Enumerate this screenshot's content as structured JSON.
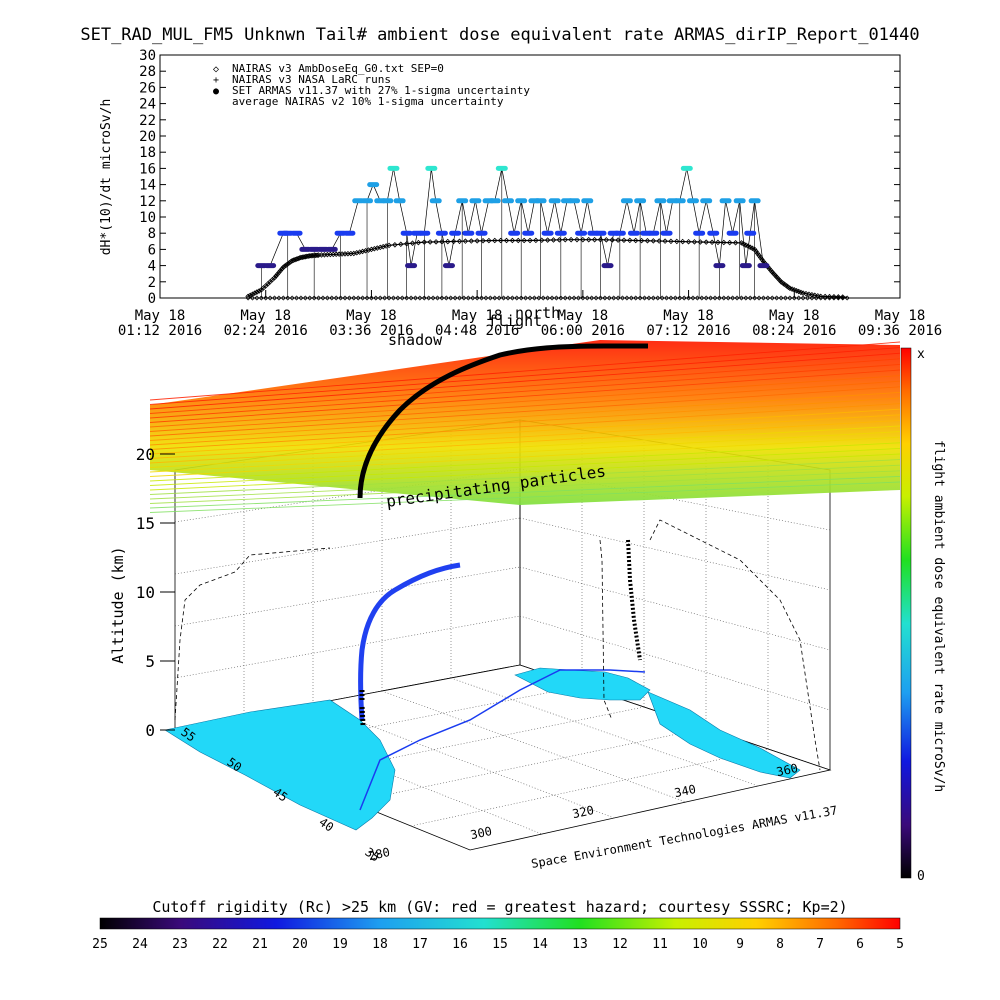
{
  "title": "SET_RAD_MUL_FM5 Unknwn Tail#  ambient dose equivalent rate ARMAS_dirIP_Report_01440",
  "colors": {
    "nairas_v3": "#000000",
    "armas_low": "#2a1a8a",
    "armas_mid": "#1a3cf0",
    "armas_high": "#1ea0e6",
    "armas_peak": "#2ee6d0",
    "land": "#22d8f8"
  },
  "chart_data": [
    {
      "type": "scatter",
      "ylabel": "dH*(10)/dt microSv/h",
      "ylim": [
        0,
        30
      ],
      "yticks": [
        0,
        2,
        4,
        6,
        8,
        10,
        12,
        14,
        16,
        18,
        20,
        22,
        24,
        26,
        28,
        30
      ],
      "xticks": [
        [
          "May 18",
          "01:12 2016"
        ],
        [
          "May 18",
          "02:24 2016"
        ],
        [
          "May 18",
          "03:36 2016"
        ],
        [
          "May 18",
          "04:48 2016"
        ],
        [
          "May 18",
          "06:00 2016"
        ],
        [
          "May 18",
          "07:12 2016"
        ],
        [
          "May 18",
          "08:24 2016"
        ],
        [
          "May 18",
          "09:36 2016"
        ]
      ],
      "xlim_hours": [
        1.2,
        9.6
      ],
      "legend": [
        {
          "symbol": "◇",
          "label": "NAIRAS v3 AmbDoseEq_G0.txt SEP=0"
        },
        {
          "symbol": "+",
          "label": "NAIRAS v3 NASA LaRC runs"
        },
        {
          "symbol": "●",
          "label": "SET ARMAS v11.37 with 27% 1-sigma uncertainty"
        },
        {
          "symbol": "",
          "label": "average NAIRAS v2 10% 1-sigma uncertainty"
        }
      ],
      "legend_position": "top-left",
      "overlap_labels": [
        "shadow",
        "flight",
        "north"
      ],
      "series": [
        {
          "name": "NAIRAS v3 AmbDoseEq_G0.txt SEP=0",
          "x": [
            2.2,
            2.35,
            2.5,
            2.6,
            2.7,
            2.8,
            2.9,
            3.0,
            3.2,
            3.4,
            3.6,
            3.8,
            4.2,
            4.6,
            5.0,
            5.4,
            5.8,
            6.2,
            6.6,
            7.0,
            7.4,
            7.8,
            7.95,
            8.05,
            8.15,
            8.25,
            8.35,
            8.5,
            8.7,
            9.0
          ],
          "y": [
            0.2,
            1.0,
            2.5,
            3.8,
            4.6,
            5.0,
            5.2,
            5.3,
            5.4,
            5.5,
            6.0,
            6.5,
            6.9,
            7.0,
            7.1,
            7.1,
            7.2,
            7.2,
            7.1,
            7.0,
            6.9,
            6.8,
            6.0,
            4.5,
            3.2,
            2.0,
            1.2,
            0.6,
            0.2,
            0.1
          ]
        },
        {
          "name": "SET ARMAS v11.37 with 27% 1-sigma uncertainty",
          "x": [
            2.35,
            2.45,
            2.6,
            2.65,
            2.75,
            2.85,
            2.95,
            3.05,
            3.15,
            3.25,
            3.35,
            3.45,
            3.55,
            3.62,
            3.7,
            3.78,
            3.85,
            3.92,
            4.0,
            4.05,
            4.12,
            4.2,
            4.28,
            4.33,
            4.4,
            4.48,
            4.55,
            4.63,
            4.7,
            4.78,
            4.85,
            4.93,
            5.0,
            5.08,
            5.15,
            5.22,
            5.3,
            5.38,
            5.45,
            5.52,
            5.6,
            5.68,
            5.75,
            5.82,
            5.9,
            5.98,
            6.05,
            6.12,
            6.2,
            6.28,
            6.35,
            6.42,
            6.5,
            6.58,
            6.65,
            6.72,
            6.8,
            6.88,
            6.95,
            7.02,
            7.1,
            7.18,
            7.25,
            7.32,
            7.4,
            7.48,
            7.55,
            7.62,
            7.7,
            7.78,
            7.85,
            7.9,
            7.95,
            8.05
          ],
          "y": [
            4,
            4,
            8,
            8,
            8,
            6,
            6,
            6,
            6,
            8,
            8,
            12,
            12,
            14,
            12,
            12,
            16,
            12,
            8,
            4,
            8,
            8,
            16,
            12,
            8,
            4,
            8,
            12,
            8,
            12,
            8,
            12,
            12,
            16,
            12,
            8,
            12,
            8,
            12,
            12,
            8,
            12,
            8,
            12,
            12,
            8,
            12,
            8,
            8,
            4,
            8,
            8,
            12,
            8,
            12,
            8,
            8,
            12,
            8,
            12,
            12,
            16,
            12,
            8,
            12,
            8,
            4,
            12,
            8,
            12,
            4,
            8,
            12,
            4
          ]
        }
      ]
    },
    {
      "type": "heatmap",
      "zlabel": "Altitude (km)",
      "ztick_labels": [
        "0",
        "5",
        "10",
        "15",
        "20"
      ],
      "lat_ticks": [
        "35",
        "40",
        "45",
        "50",
        "55"
      ],
      "lon_ticks": [
        "280",
        "300",
        "320",
        "340",
        "360"
      ],
      "annotation": "precipitating particles",
      "credit": "Space Environment Technologies ARMAS v11.37",
      "colorbar": {
        "label": "flight ambient dose equivalent rate microSv/h",
        "top_label": "x",
        "bottom_label": "0"
      },
      "rigidity_bar": {
        "title": "Cutoff rigidity (Rc) >25 km (GV: red = greatest hazard; courtesy SSSRC; Kp=2)",
        "ticks": [
          "25",
          "24",
          "23",
          "22",
          "21",
          "20",
          "19",
          "18",
          "17",
          "16",
          "15",
          "14",
          "13",
          "12",
          "11",
          "10",
          "9",
          "8",
          "7",
          "6",
          "5"
        ]
      }
    }
  ]
}
